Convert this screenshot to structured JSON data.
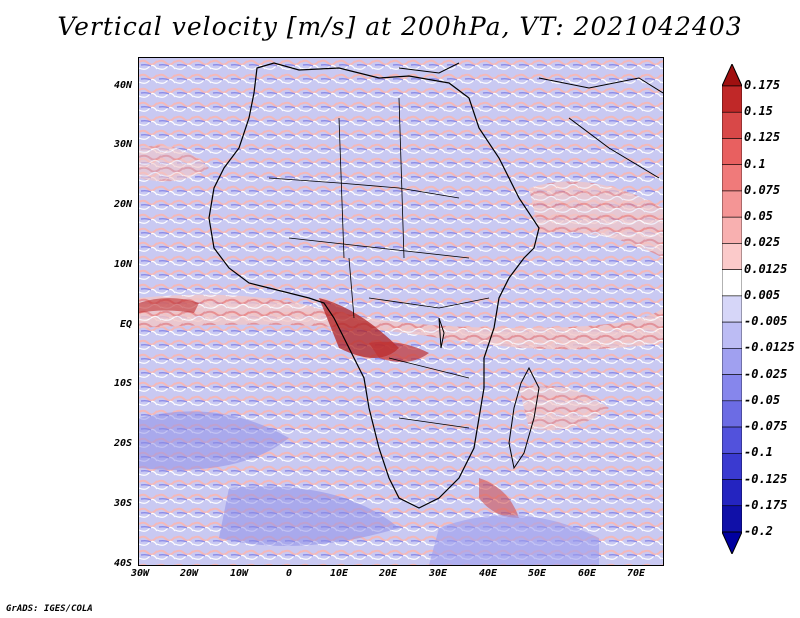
{
  "title": "Vertical velocity [m/s] at 200hPa, VT: 2021042403",
  "footer": "GrADS: IGES/COLA",
  "map": {
    "lat_labels": [
      "40N",
      "30N",
      "20N",
      "10N",
      "EQ",
      "10S",
      "20S",
      "30S",
      "40S"
    ],
    "lon_labels": [
      "30W",
      "20W",
      "10W",
      "0",
      "10E",
      "20E",
      "30E",
      "40E",
      "50E",
      "60E",
      "70E"
    ]
  },
  "colorbar": {
    "labels": [
      "0.175",
      "0.15",
      "0.125",
      "0.1",
      "0.075",
      "0.05",
      "0.025",
      "0.0125",
      "0.005",
      "-0.005",
      "-0.0125",
      "-0.025",
      "-0.05",
      "-0.075",
      "-0.1",
      "-0.125",
      "-0.175",
      "-0.2"
    ],
    "colors": [
      "#a01010",
      "#c02828",
      "#d84848",
      "#e86060",
      "#f07a7a",
      "#f49595",
      "#f8b0b0",
      "#fbcaca",
      "#ffffff",
      "#d6d6f8",
      "#bcbcf4",
      "#a0a0f0",
      "#8686ec",
      "#6c6ce4",
      "#5252dc",
      "#3a3ad0",
      "#2424c0",
      "#1010a8",
      "#0000a0"
    ]
  }
}
